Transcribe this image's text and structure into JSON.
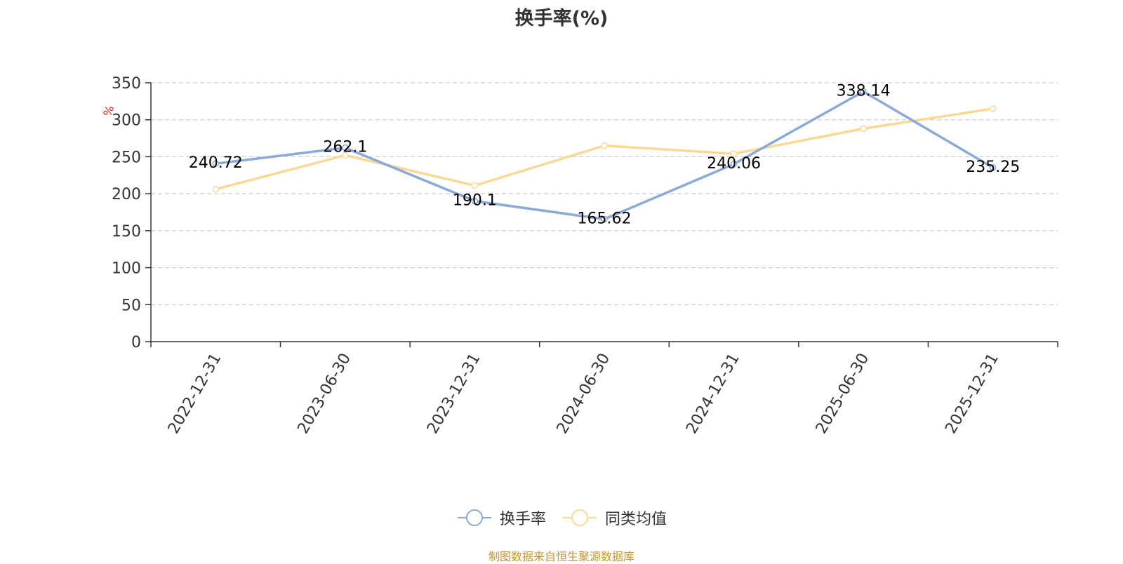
{
  "chart_data": {
    "type": "line",
    "title": "换手率(%)",
    "ylabel": "%",
    "xlabel": "",
    "ylim": [
      0,
      350
    ],
    "yticks": [
      0,
      50,
      100,
      150,
      200,
      250,
      300,
      350
    ],
    "grid": true,
    "legend_position": "bottom",
    "categories": [
      "2022-12-31",
      "2023-06-30",
      "2023-12-31",
      "2024-06-30",
      "2024-12-31",
      "2025-06-30",
      "2025-12-31"
    ],
    "series": [
      {
        "name": "换手率",
        "color": "#8caad6",
        "values": [
          240.72,
          262.1,
          190.1,
          165.62,
          240.06,
          338.14,
          235.25
        ],
        "show_labels": true,
        "labels": [
          "240.72",
          "262.1",
          "190.1",
          "165.62",
          "240.06",
          "338.14",
          "235.25"
        ]
      },
      {
        "name": "同类均值",
        "color": "#fad994",
        "values": [
          206,
          252,
          211,
          265,
          254,
          288,
          315
        ],
        "show_labels": false
      }
    ]
  },
  "footer": {
    "source": "制图数据来自恒生聚源数据库",
    "source_color": "#c9952b"
  },
  "y_unit_color": "#e02020"
}
